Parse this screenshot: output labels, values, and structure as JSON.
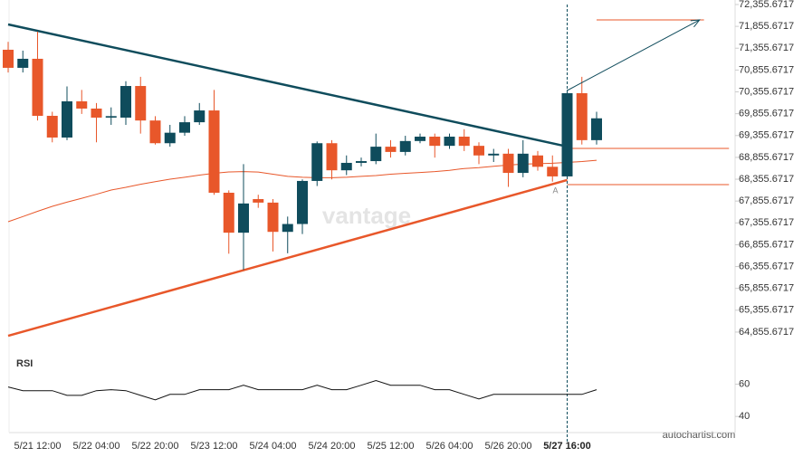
{
  "chart_data": {
    "type": "candlestick",
    "watermark": "vantage",
    "credit": "autochartist.com",
    "annotation": "A",
    "categories": [
      null,
      null,
      "5/21 12:00",
      null,
      null,
      null,
      "5/22 04:00",
      null,
      null,
      null,
      "5/22 20:00",
      null,
      null,
      null,
      "5/23 12:00",
      null,
      null,
      null,
      "5/24 04:00",
      null,
      null,
      null,
      "5/24 20:00",
      null,
      null,
      null,
      "5/25 12:00",
      null,
      null,
      null,
      "5/26 04:00",
      null,
      null,
      null,
      "5/26 20:00",
      null,
      null,
      null,
      "5/27 16:00",
      null,
      null
    ],
    "up_color": "#0f4c5c",
    "down_color": "#e8572a",
    "open": [
      71320,
      70906,
      71113,
      69807,
      69310,
      70139,
      69973,
      69766,
      69766,
      70490,
      69700,
      69180,
      69420,
      69660,
      69930,
      68046,
      67131,
      67900,
      67820,
      67150,
      67330,
      68316,
      69180,
      68560,
      68730,
      68770,
      69100,
      68980,
      69230,
      69330,
      69120,
      69330,
      69120,
      68900,
      68940,
      68500,
      68900,
      68640,
      68420,
      70325,
      69250
    ],
    "high": [
      71500,
      71300,
      71734,
      69900,
      70480,
      70400,
      70100,
      70000,
      70600,
      70700,
      69800,
      69600,
      69800,
      70100,
      70400,
      68100,
      68700,
      68000,
      67900,
      67500,
      68350,
      69220,
      69250,
      68900,
      68850,
      69400,
      69250,
      69350,
      69400,
      69400,
      69400,
      69500,
      69200,
      69050,
      69050,
      69250,
      69000,
      68900,
      70400,
      70700,
      69900
    ],
    "low": [
      70800,
      70800,
      69700,
      69200,
      69250,
      69850,
      69200,
      69600,
      69600,
      69400,
      69150,
      69100,
      69350,
      69600,
      68000,
      66650,
      66280,
      67700,
      66700,
      66660,
      67100,
      68200,
      68350,
      68450,
      68650,
      68700,
      68850,
      68900,
      69180,
      68850,
      69050,
      69000,
      68700,
      68750,
      68180,
      68400,
      68550,
      68300,
      68380,
      69150,
      69150
    ],
    "close": [
      70906,
      71113,
      69807,
      69310,
      70139,
      69973,
      69766,
      69800,
      70490,
      69700,
      69180,
      69420,
      69660,
      69930,
      68046,
      67131,
      67800,
      67820,
      67150,
      67330,
      68316,
      69180,
      68560,
      68730,
      68770,
      69100,
      68980,
      69230,
      69330,
      69120,
      69330,
      69120,
      68900,
      68940,
      68500,
      68940,
      68640,
      68420,
      70325,
      69250,
      69750
    ],
    "ma": {
      "color": "#e8572a",
      "values": [
        67383,
        67500,
        67620,
        67735,
        67830,
        67920,
        68010,
        68108,
        68170,
        68240,
        68300,
        68357,
        68400,
        68450,
        68490,
        68522,
        68530,
        68520,
        68470,
        68420,
        68400,
        68390,
        68390,
        68400,
        68420,
        68440,
        68470,
        68490,
        68510,
        68530,
        68560,
        68600,
        68620,
        68650,
        68680,
        68700,
        68710,
        68720,
        68740,
        68760,
        68790
      ]
    },
    "resistance": {
      "color": "#0f4c5c",
      "x": [
        0,
        38
      ],
      "y": [
        71900,
        69103
      ]
    },
    "support": {
      "color": "#e8572a",
      "x": [
        0,
        38
      ],
      "y": [
        64771,
        68337
      ]
    },
    "levels": [
      {
        "x": [
          40,
          47.3
        ],
        "y": 72003
      },
      {
        "x": [
          38,
          49
        ],
        "y": 69062
      },
      {
        "x": [
          38,
          49
        ],
        "y": 68233
      }
    ],
    "arrow": {
      "color": "#0f4c5c",
      "x": [
        38,
        47
      ],
      "y": [
        70387,
        72003
      ]
    },
    "ylim": [
      64378,
      72459
    ],
    "yticks": [
      {
        "value": 72355.6717,
        "label": "72,355.6717"
      },
      {
        "value": 71855.6717,
        "label": "71,855.6717"
      },
      {
        "value": 71355.6717,
        "label": "71,355.6717"
      },
      {
        "value": 70855.6717,
        "label": "70,855.6717"
      },
      {
        "value": 70355.6717,
        "label": "70,355.6717"
      },
      {
        "value": 69855.6717,
        "label": "69,855.6717"
      },
      {
        "value": 69355.6717,
        "label": "69,355.6717"
      },
      {
        "value": 68855.6717,
        "label": "68,855.6717"
      },
      {
        "value": 68355.6717,
        "label": "68,355.6717"
      },
      {
        "value": 67855.6717,
        "label": "67,855.6717"
      },
      {
        "value": 67355.6717,
        "label": "67,355.6717"
      },
      {
        "value": 66855.6717,
        "label": "66,855.6717"
      },
      {
        "value": 66355.6717,
        "label": "66,355.6717"
      },
      {
        "value": 65855.6717,
        "label": "65,855.6717"
      },
      {
        "value": 65355.6717,
        "label": "65,355.6717"
      },
      {
        "value": 64855.6717,
        "label": "64,855.6717"
      }
    ],
    "rsi": {
      "title": "RSI",
      "color": "#111111",
      "values": [
        58.3,
        56,
        56,
        56,
        53.1,
        53.1,
        56,
        56.6,
        56,
        53.1,
        50.3,
        53.7,
        53.7,
        56.6,
        56.6,
        56.6,
        59.4,
        56.6,
        56.6,
        56.6,
        56.6,
        59.4,
        56.6,
        56.6,
        59.4,
        62.3,
        59.4,
        59.4,
        59.4,
        56.6,
        56.6,
        53.7,
        50.9,
        53.7,
        53.7,
        53.7,
        53.7,
        53.7,
        53.7,
        53.7,
        56.6
      ],
      "ylim": [
        30,
        71
      ],
      "yticks": [
        60,
        40
      ]
    }
  }
}
